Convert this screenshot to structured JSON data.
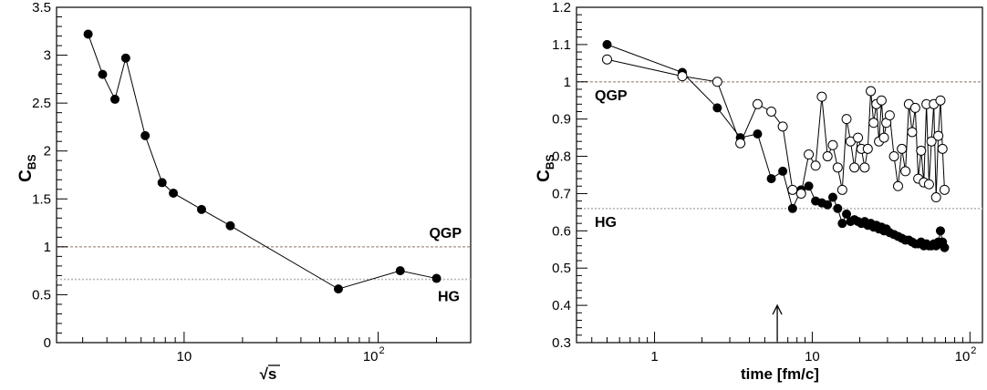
{
  "chart_data": [
    {
      "type": "line",
      "ylabel_main": "C",
      "ylabel_sub": "BS",
      "xlabel": "√s",
      "xscale": "log",
      "xlim": [
        2.2,
        300
      ],
      "ylim": [
        0,
        3.5
      ],
      "yticks": [
        "0",
        "0.5",
        "1",
        "1.5",
        "2",
        "2.5",
        "3",
        "3.5"
      ],
      "xtick_labels": [
        {
          "value": 10,
          "base": "10",
          "exp": ""
        },
        {
          "value": 100,
          "base": "10",
          "exp": "2"
        }
      ],
      "reference_lines": [
        {
          "label": "QGP",
          "y": 1.0,
          "color": "#b8a8a0"
        },
        {
          "label": "HG",
          "y": 0.66,
          "color": "#b8b8b8"
        }
      ],
      "series": [
        {
          "marker": "filled",
          "x": [
            3.2,
            3.8,
            4.4,
            5.0,
            6.3,
            7.7,
            8.8,
            12.3,
            17.3,
            62.4,
            130,
            200
          ],
          "y": [
            3.22,
            2.8,
            2.54,
            2.97,
            2.16,
            1.67,
            1.56,
            1.39,
            1.22,
            0.56,
            0.75,
            0.67
          ]
        }
      ]
    },
    {
      "type": "line",
      "ylabel_main": "C",
      "ylabel_sub": "BS",
      "xlabel": "time [fm/c]",
      "xscale": "log",
      "xlim": [
        0.32,
        120
      ],
      "ylim": [
        0.3,
        1.2
      ],
      "yticks": [
        "0.3",
        "0.4",
        "0.5",
        "0.6",
        "0.7",
        "0.8",
        "0.9",
        "1",
        "1.1",
        "1.2"
      ],
      "xtick_labels": [
        {
          "value": 1,
          "base": "1",
          "exp": ""
        },
        {
          "value": 10,
          "base": "10",
          "exp": ""
        },
        {
          "value": 100,
          "base": "10",
          "exp": "2"
        }
      ],
      "reference_lines": [
        {
          "label": "QGP",
          "y": 1.0,
          "color": "#b8a8a0"
        },
        {
          "label": "HG",
          "y": 0.66,
          "color": "#b8b8b8"
        }
      ],
      "arrow": {
        "x": 6,
        "y_from": 0.3,
        "y_to": 0.4
      },
      "series": [
        {
          "marker": "filled",
          "x": [
            0.5,
            1.5,
            2.5,
            3.5,
            4.5,
            5.5,
            6.5,
            7.5,
            8.5,
            9.5,
            10.5,
            11.5,
            12.5,
            13.5,
            14.5,
            15.5,
            16.5,
            17.5,
            18.5,
            19.5,
            20.5,
            21.5,
            22.5,
            23.5,
            24.5,
            25.5,
            26.5,
            27.5,
            28.5,
            29.5,
            31,
            33,
            35,
            37,
            39,
            41,
            43,
            45,
            47,
            49,
            51,
            53,
            55,
            57,
            59,
            61,
            63,
            65,
            67,
            69
          ],
          "y": [
            1.1,
            1.025,
            0.93,
            0.85,
            0.86,
            0.74,
            0.76,
            0.66,
            0.71,
            0.72,
            0.68,
            0.675,
            0.67,
            0.69,
            0.66,
            0.62,
            0.645,
            0.625,
            0.63,
            0.625,
            0.62,
            0.625,
            0.615,
            0.62,
            0.61,
            0.615,
            0.605,
            0.61,
            0.6,
            0.605,
            0.595,
            0.59,
            0.585,
            0.58,
            0.575,
            0.575,
            0.57,
            0.565,
            0.565,
            0.57,
            0.56,
            0.565,
            0.56,
            0.56,
            0.565,
            0.56,
            0.57,
            0.6,
            0.57,
            0.555
          ]
        },
        {
          "marker": "open",
          "x": [
            0.5,
            1.5,
            2.5,
            3.5,
            4.5,
            5.5,
            6.5,
            7.5,
            8.5,
            9.5,
            10.5,
            11.5,
            12.5,
            13.5,
            14.5,
            15.5,
            16.5,
            17.5,
            18.5,
            19.5,
            20.5,
            21.5,
            22.5,
            23.5,
            24.5,
            25.5,
            26.5,
            27.5,
            28.5,
            29.5,
            31,
            33,
            35,
            37,
            39,
            41,
            43,
            45,
            47,
            49,
            51,
            53,
            55,
            57,
            59,
            61,
            63,
            65,
            67,
            69
          ],
          "y": [
            1.06,
            1.015,
            1.0,
            0.835,
            0.94,
            0.92,
            0.88,
            0.71,
            0.7,
            0.805,
            0.775,
            0.96,
            0.8,
            0.83,
            0.77,
            0.71,
            0.9,
            0.84,
            0.77,
            0.85,
            0.82,
            0.77,
            0.82,
            0.975,
            0.89,
            0.94,
            0.84,
            0.95,
            0.85,
            0.89,
            0.91,
            0.8,
            0.72,
            0.82,
            0.76,
            0.94,
            0.865,
            0.93,
            0.74,
            0.815,
            0.73,
            0.94,
            0.725,
            0.84,
            0.94,
            0.69,
            0.855,
            0.95,
            0.82,
            0.71
          ]
        }
      ]
    }
  ]
}
